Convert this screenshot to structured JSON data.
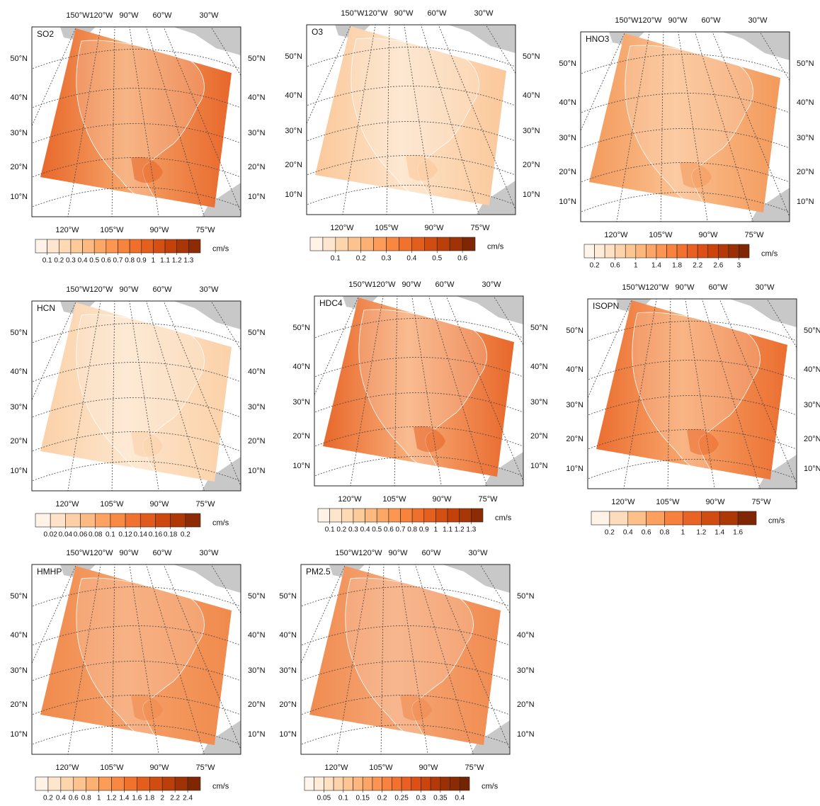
{
  "panels": [
    {
      "label": "SO2",
      "top_lon_labels": [
        "150°W",
        "120°W",
        "90°W",
        "60°W",
        "30°W"
      ],
      "bottom_lon_labels": [
        "120°W",
        "105°W",
        "90°W",
        "75°W"
      ],
      "lat_labels_left": [
        "50°N",
        "40°N",
        "30°N",
        "20°N",
        "10°N"
      ],
      "lat_labels_right": [
        "50°N",
        "40°N",
        "30°N",
        "20°N",
        "10°N"
      ],
      "colorbar": {
        "unit": "cm/s",
        "clim": [
          0,
          1.4
        ],
        "ticks": [
          0.1,
          0.2,
          0.3,
          0.4,
          0.5,
          0.6,
          0.7,
          0.8,
          0.9,
          1,
          1.1,
          1.2,
          1.3
        ],
        "colors": [
          "#fff2e6",
          "#fee6ce",
          "#fdd9b4",
          "#fdca99",
          "#fdb97f",
          "#fda766",
          "#fd9650",
          "#f8833c",
          "#f0702b",
          "#e55f1d",
          "#d64f12",
          "#c4420a",
          "#a93606",
          "#8c2b04"
        ]
      }
    },
    {
      "label": "O3",
      "top_lon_labels": [
        "150°W",
        "120°W",
        "90°W",
        "60°W",
        "30°W"
      ],
      "bottom_lon_labels": [
        "120°W",
        "105°W",
        "90°W",
        "75°W"
      ],
      "lat_labels_left": [
        "50°N",
        "40°N",
        "30°N",
        "20°N",
        "10°N"
      ],
      "lat_labels_right": [
        "50°N",
        "40°N",
        "30°N",
        "20°N",
        "10°N"
      ],
      "colorbar": {
        "unit": "cm/s",
        "clim": [
          0,
          0.65
        ],
        "ticks": [
          0.1,
          0.2,
          0.3,
          0.4,
          0.5,
          0.6
        ],
        "colors": [
          "#fff2e6",
          "#fee6ce",
          "#fdd5ac",
          "#fdc38e",
          "#fdb071",
          "#fd9c58",
          "#f88740",
          "#f0722c",
          "#e35e1b",
          "#d14c10",
          "#bb3f08",
          "#9f3305",
          "#7f2704"
        ]
      }
    },
    {
      "label": "HNO3",
      "top_lon_labels": [
        "150°W",
        "120°W",
        "90°W",
        "60°W",
        "30°W"
      ],
      "bottom_lon_labels": [
        "120°W",
        "105°W",
        "90°W",
        "75°W"
      ],
      "lat_labels_left": [
        "50°N",
        "40°N",
        "30°N",
        "20°N",
        "10°N"
      ],
      "lat_labels_right": [
        "50°N",
        "40°N",
        "30°N",
        "20°N",
        "10°N"
      ],
      "colorbar": {
        "unit": "cm/s",
        "clim": [
          0,
          3.2
        ],
        "ticks": [
          0.2,
          0.6,
          1,
          1.4,
          1.8,
          2.2,
          2.6,
          3
        ],
        "colors": [
          "#fff5eb",
          "#feebd8",
          "#fee0c3",
          "#fdd3ab",
          "#fdc592",
          "#fdb67c",
          "#fda566",
          "#fd9452",
          "#f9823f",
          "#f3712f",
          "#e96022",
          "#dc5016",
          "#ca440c",
          "#b43907",
          "#9b3005",
          "#7f2704"
        ]
      }
    },
    {
      "label": "HCN",
      "top_lon_labels": [
        "150°W",
        "120°W",
        "90°W",
        "60°W",
        "30°W"
      ],
      "bottom_lon_labels": [
        "120°W",
        "105°W",
        "90°W",
        "75°W"
      ],
      "lat_labels_left": [
        "50°N",
        "40°N",
        "30°N",
        "20°N",
        "10°N"
      ],
      "lat_labels_right": [
        "50°N",
        "40°N",
        "30°N",
        "20°N",
        "10°N"
      ],
      "colorbar": {
        "unit": "cm/s",
        "clim": [
          0,
          0.22
        ],
        "ticks": [
          0.02,
          0.04,
          0.06,
          0.08,
          0.1,
          0.12,
          0.14,
          0.16,
          0.18,
          0.2
        ],
        "colors": [
          "#fff2e6",
          "#fee3c8",
          "#fdd0a5",
          "#fdba82",
          "#fda262",
          "#f98a46",
          "#f07230",
          "#e15b1c",
          "#cc480e",
          "#b03807",
          "#8c2b04"
        ]
      }
    },
    {
      "label": "HDC4",
      "top_lon_labels": [
        "150°W",
        "120°W",
        "90°W",
        "60°W",
        "30°W"
      ],
      "bottom_lon_labels": [
        "120°W",
        "105°W",
        "90°W",
        "75°W"
      ],
      "lat_labels_left": [
        "50°N",
        "40°N",
        "30°N",
        "20°N",
        "10°N"
      ],
      "lat_labels_right": [
        "50°N",
        "40°N",
        "30°N",
        "20°N",
        "10°N"
      ],
      "colorbar": {
        "unit": "cm/s",
        "clim": [
          0,
          1.4
        ],
        "ticks": [
          0.1,
          0.2,
          0.3,
          0.4,
          0.5,
          0.6,
          0.7,
          0.8,
          0.9,
          1,
          1.1,
          1.2,
          1.3
        ],
        "colors": [
          "#fff2e6",
          "#fee6ce",
          "#fdd9b4",
          "#fdca99",
          "#fdb97f",
          "#fda766",
          "#fd9650",
          "#f8833c",
          "#f0702b",
          "#e55f1d",
          "#d64f12",
          "#c4420a",
          "#a93606",
          "#8c2b04"
        ]
      }
    },
    {
      "label": "ISOPN",
      "top_lon_labels": [
        "150°W",
        "120°W",
        "90°W",
        "60°W",
        "30°W"
      ],
      "bottom_lon_labels": [
        "120°W",
        "105°W",
        "90°W",
        "75°W"
      ],
      "lat_labels_left": [
        "50°N",
        "40°N",
        "30°N",
        "20°N",
        "10°N"
      ],
      "lat_labels_right": [
        "50°N",
        "40°N",
        "30°N",
        "20°N",
        "10°N"
      ],
      "colorbar": {
        "unit": "cm/s",
        "clim": [
          0,
          1.8
        ],
        "ticks": [
          0.2,
          0.4,
          0.6,
          0.8,
          1,
          1.2,
          1.4,
          1.6
        ],
        "colors": [
          "#fff2e6",
          "#fddcbc",
          "#fdc08b",
          "#fda05e",
          "#f7813c",
          "#e96324",
          "#d14c10",
          "#ad3806",
          "#7f2704"
        ]
      }
    },
    {
      "label": "HMHP",
      "top_lon_labels": [
        "150°W",
        "120°W",
        "90°W",
        "60°W",
        "30°W"
      ],
      "bottom_lon_labels": [
        "120°W",
        "105°W",
        "90°W",
        "75°W"
      ],
      "lat_labels_left": [
        "50°N",
        "40°N",
        "30°N",
        "20°N",
        "10°N"
      ],
      "lat_labels_right": [
        "50°N",
        "40°N",
        "30°N",
        "20°N",
        "10°N"
      ],
      "colorbar": {
        "unit": "cm/s",
        "clim": [
          0,
          2.6
        ],
        "ticks": [
          0.2,
          0.4,
          0.6,
          0.8,
          1,
          1.2,
          1.4,
          1.6,
          1.8,
          2,
          2.2,
          2.4
        ],
        "colors": [
          "#fff2e6",
          "#fee6ce",
          "#fdd5ac",
          "#fdc38e",
          "#fdb071",
          "#fd9c58",
          "#f88740",
          "#f0722c",
          "#e35e1b",
          "#d14c10",
          "#bb3f08",
          "#9f3305",
          "#7f2704"
        ]
      }
    },
    {
      "label": "PM2.5",
      "top_lon_labels": [
        "150°W",
        "120°W",
        "90°W",
        "60°W",
        "30°W"
      ],
      "bottom_lon_labels": [
        "120°W",
        "105°W",
        "90°W",
        "75°W"
      ],
      "lat_labels_left": [
        "50°N",
        "40°N",
        "30°N",
        "20°N",
        "10°N"
      ],
      "lat_labels_right": [
        "50°N",
        "40°N",
        "30°N",
        "20°N",
        "10°N"
      ],
      "colorbar": {
        "unit": "cm/s",
        "clim": [
          0,
          0.425
        ],
        "ticks": [
          0.05,
          0.1,
          0.15,
          0.2,
          0.25,
          0.3,
          0.35,
          0.4
        ],
        "colors": [
          "#fff5eb",
          "#feebd8",
          "#fee0c3",
          "#fdd3ab",
          "#fdc592",
          "#fdb67c",
          "#fda566",
          "#fd9452",
          "#f9823f",
          "#f3712f",
          "#e96022",
          "#dc5016",
          "#ca440c",
          "#b43907",
          "#9b3005",
          "#8a2b04",
          "#722403"
        ]
      }
    }
  ]
}
